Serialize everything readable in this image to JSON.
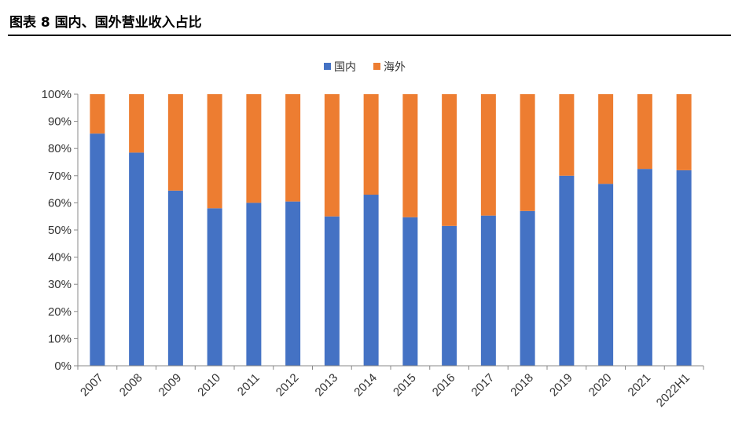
{
  "figure": {
    "title": "图表 8 国内、国外营业收入占比"
  },
  "chart_data": {
    "type": "bar",
    "stacked": true,
    "categories": [
      "2007",
      "2008",
      "2009",
      "2010",
      "2011",
      "2012",
      "2013",
      "2014",
      "2015",
      "2016",
      "2017",
      "2018",
      "2019",
      "2020",
      "2021",
      "2022H1"
    ],
    "series": [
      {
        "name": "国内",
        "color": "#4472C4",
        "values": [
          85.5,
          78.5,
          64.5,
          58,
          60,
          60.5,
          55,
          63,
          54.7,
          51.5,
          55.3,
          57,
          70,
          67,
          72.5,
          72
        ]
      },
      {
        "name": "海外",
        "color": "#ED7D31",
        "values": [
          14.5,
          21.5,
          35.5,
          42,
          40,
          39.5,
          45,
          37,
          45.3,
          48.5,
          44.7,
          43,
          30,
          33,
          27.5,
          28
        ]
      }
    ],
    "ylim": [
      0,
      100
    ],
    "yticks": [
      "0%",
      "10%",
      "20%",
      "30%",
      "40%",
      "50%",
      "60%",
      "70%",
      "80%",
      "90%",
      "100%"
    ],
    "grid": false,
    "legend": "top-center"
  }
}
